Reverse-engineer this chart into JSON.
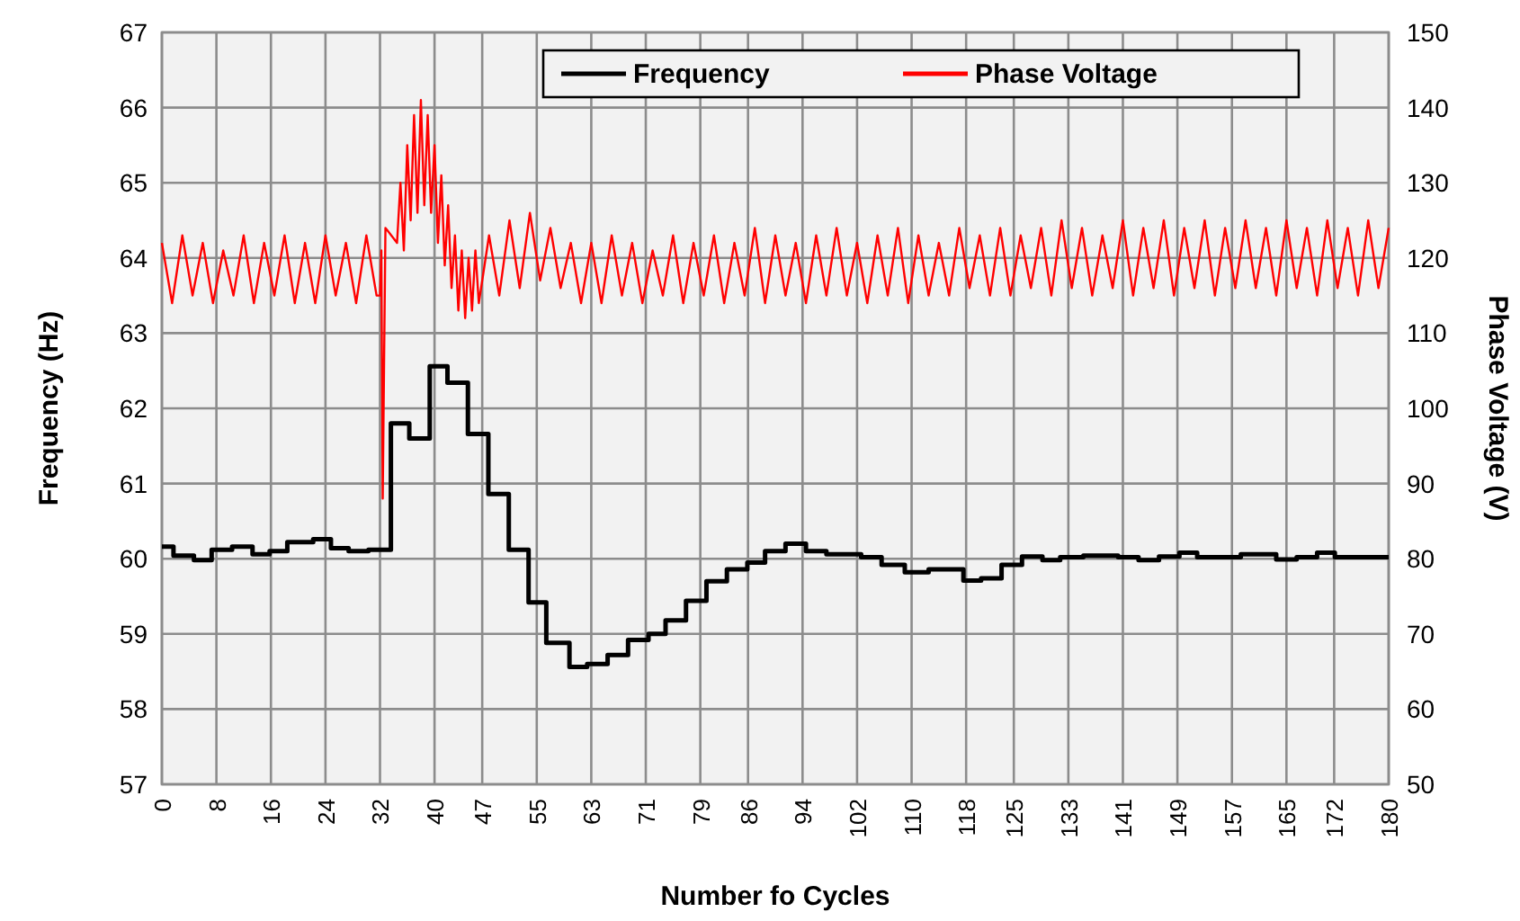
{
  "chart_data": {
    "type": "step",
    "xlabel": "Number fo Cycles",
    "ylabel": "Frequency (Hz)",
    "y2label": "Phase Voltage (V)",
    "xlim": [
      0,
      180
    ],
    "xticks": [
      0,
      8,
      16,
      24,
      32,
      40,
      47,
      55,
      63,
      71,
      79,
      86,
      94,
      102,
      110,
      118,
      125,
      133,
      141,
      149,
      157,
      165,
      172,
      180
    ],
    "ylim": [
      57,
      67
    ],
    "yticks": [
      57,
      58,
      59,
      60,
      61,
      62,
      63,
      64,
      65,
      66,
      67
    ],
    "y2lim": [
      50,
      150
    ],
    "y2ticks": [
      50,
      60,
      70,
      80,
      90,
      100,
      110,
      120,
      130,
      140,
      150
    ],
    "grid": true,
    "legend": "top right",
    "line_style": "solid",
    "marker": "none",
    "series": [
      {
        "name": "Frequency",
        "color": "#000000",
        "x": [
          0,
          1.7,
          4.7,
          7.3,
          10.3,
          13.3,
          15.8,
          18.4,
          22.2,
          24.8,
          27.4,
          30.3,
          33.6,
          36.3,
          39.3,
          41.9,
          44.9,
          47.9,
          50.9,
          53.8,
          56.4,
          59.8,
          62.4,
          65.4,
          68.4,
          71.4,
          73.9,
          76.9,
          79.9,
          82.9,
          85.9,
          88.5,
          91.5,
          94.5,
          97.5,
          102.6,
          105.6,
          109,
          112.5,
          117.6,
          120.2,
          123.2,
          126.2,
          129.2,
          131.8,
          135.2,
          140.3,
          143.3,
          146.3,
          149.3,
          151.9,
          158.3,
          163.5,
          166.5,
          169.5,
          172.1,
          180
        ],
        "values": [
          60.16,
          60.04,
          59.98,
          60.12,
          60.16,
          60.06,
          60.1,
          60.22,
          60.26,
          60.14,
          60.1,
          60.12,
          61.8,
          61.6,
          62.56,
          62.34,
          61.66,
          60.86,
          60.12,
          59.42,
          58.88,
          58.56,
          58.6,
          58.72,
          58.92,
          59.0,
          59.18,
          59.44,
          59.7,
          59.86,
          59.95,
          60.1,
          60.2,
          60.1,
          60.06,
          60.02,
          59.92,
          59.82,
          59.86,
          59.71,
          59.74,
          59.92,
          60.03,
          59.98,
          60.02,
          60.04,
          60.02,
          59.98,
          60.03,
          60.08,
          60.02,
          60.06,
          59.99,
          60.02,
          60.08,
          60.02,
          60.02
        ]
      },
      {
        "name": "Phase Voltage",
        "type": "line",
        "axis": "y2",
        "color": "#ff0000",
        "x": [
          0,
          1.5,
          3,
          4.5,
          6,
          7.5,
          9,
          10.5,
          12,
          13.5,
          15,
          16.5,
          18,
          19.5,
          21,
          22.5,
          24,
          25.5,
          27,
          28.5,
          30,
          31.5,
          32,
          32.2,
          32.4,
          32.8,
          34.5,
          35,
          35.5,
          36,
          36.5,
          37,
          37.5,
          38,
          38.5,
          39,
          39.5,
          40,
          40.5,
          41,
          41.5,
          42,
          42.5,
          43,
          43.5,
          44,
          44.5,
          45,
          45.5,
          46,
          46.5,
          48,
          49.5,
          51,
          52.5,
          54,
          55.5,
          57,
          58.5,
          60,
          61.5,
          63,
          64.5,
          66,
          67.5,
          69,
          70.5,
          72,
          73.5,
          75,
          76.5,
          78,
          79.5,
          81,
          82.5,
          84,
          85.5,
          87,
          88.5,
          90,
          91.5,
          93,
          94.5,
          96,
          97.5,
          99,
          100.5,
          102,
          103.5,
          105,
          106.5,
          108,
          109.5,
          111,
          112.5,
          114,
          115.5,
          117,
          118.5,
          120,
          121.5,
          123,
          124.5,
          126,
          127.5,
          129,
          130.5,
          132,
          133.5,
          135,
          136.5,
          138,
          139.5,
          141,
          142.5,
          144,
          145.5,
          147,
          148.5,
          150,
          151.5,
          153,
          154.5,
          156,
          157.5,
          159,
          160.5,
          162,
          163.5,
          165,
          166.5,
          168,
          169.5,
          171,
          172.5,
          174,
          175.5,
          177,
          178.5,
          180
        ],
        "values": [
          122,
          114,
          123,
          115,
          122,
          114,
          121,
          115,
          123,
          114,
          122,
          115,
          123,
          114,
          122,
          114,
          123,
          115,
          122,
          114,
          123,
          115,
          115,
          121,
          88,
          124,
          122,
          130,
          121,
          135,
          125,
          139,
          126,
          141,
          127,
          139,
          126,
          135,
          122,
          131,
          119,
          127,
          116,
          123,
          113,
          121,
          112,
          120,
          113,
          121,
          114,
          123,
          115,
          125,
          116,
          126,
          117,
          124,
          116,
          122,
          114,
          122,
          114,
          123,
          115,
          122,
          114,
          121,
          115,
          123,
          114,
          122,
          115,
          123,
          114,
          122,
          115,
          124,
          114,
          123,
          115,
          122,
          114,
          123,
          115,
          124,
          115,
          122,
          114,
          123,
          115,
          124,
          114,
          123,
          115,
          122,
          115,
          124,
          116,
          123,
          115,
          124,
          115,
          123,
          116,
          124,
          115,
          125,
          116,
          124,
          115,
          123,
          116,
          125,
          115,
          124,
          116,
          125,
          115,
          124,
          116,
          125,
          115,
          124,
          116,
          125,
          116,
          124,
          115,
          125,
          116,
          124,
          115,
          125,
          116,
          124,
          115,
          125,
          116,
          124
        ]
      }
    ]
  }
}
